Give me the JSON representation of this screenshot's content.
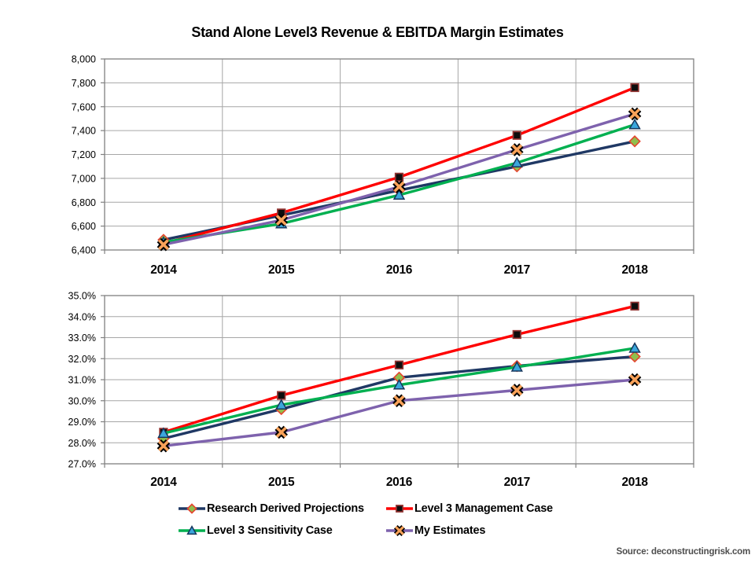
{
  "title": "Stand Alone Level3 Revenue & EBITDA Margin Estimates",
  "source_note": "Source: deconstructingrisk.com",
  "colors": {
    "research_line": "#1F3864",
    "management_line": "#FE0000",
    "sensitivity_line": "#00B050",
    "my_estimates_line": "#7E62AD",
    "gridline": "#A6A6A6",
    "plot_border": "#808080"
  },
  "chart_data": [
    {
      "type": "line",
      "name": "revenue-estimates",
      "categories": [
        "2014",
        "2015",
        "2016",
        "2017",
        "2018"
      ],
      "xlabel": "",
      "ylabel": "",
      "ylim": [
        6400,
        8000
      ],
      "grid": true,
      "ytick_values": [
        8000,
        7800,
        7600,
        7400,
        7200,
        7000,
        6800,
        6600,
        6400
      ],
      "ytick_labels": [
        "8,000",
        "7,800",
        "7,600",
        "7,400",
        "7,200",
        "7,000",
        "6,800",
        "6,600",
        "6,400"
      ],
      "series": [
        {
          "name": "Research Derived Projections",
          "color": "#1F3864",
          "marker": "diamond",
          "marker_fill": "#8FBF4D",
          "marker_stroke": "#E6432E",
          "values": [
            6485,
            6690,
            6900,
            7100,
            7310
          ]
        },
        {
          "name": "Level 3 Management Case",
          "color": "#FE0000",
          "marker": "square",
          "marker_fill": "#0D0D0D",
          "marker_stroke": "#943634",
          "values": [
            6455,
            6710,
            7010,
            7360,
            7760
          ]
        },
        {
          "name": "Level 3 Sensitivity Case",
          "color": "#00B050",
          "marker": "triangle",
          "marker_fill": "#3BA6DC",
          "marker_stroke": "#16365C",
          "values": [
            6465,
            6620,
            6860,
            7130,
            7450
          ]
        },
        {
          "name": "My Estimates",
          "color": "#7E62AD",
          "marker": "x",
          "marker_fill": "#F9A259",
          "marker_stroke": "#000000",
          "values": [
            6445,
            6650,
            6930,
            7240,
            7540
          ]
        }
      ]
    },
    {
      "type": "line",
      "name": "ebitda-margin-estimates",
      "categories": [
        "2014",
        "2015",
        "2016",
        "2017",
        "2018"
      ],
      "xlabel": "",
      "ylabel": "",
      "ylim": [
        27.0,
        35.0
      ],
      "grid": true,
      "ytick_values": [
        35.0,
        34.0,
        33.0,
        32.0,
        31.0,
        30.0,
        29.0,
        28.0,
        27.0
      ],
      "ytick_labels": [
        "35.0%",
        "34.0%",
        "33.0%",
        "32.0%",
        "31.0%",
        "30.0%",
        "29.0%",
        "28.0%",
        "27.0%"
      ],
      "series": [
        {
          "name": "Research Derived Projections",
          "color": "#1F3864",
          "marker": "diamond",
          "marker_fill": "#8FBF4D",
          "marker_stroke": "#E6432E",
          "values": [
            28.2,
            29.6,
            31.1,
            31.65,
            32.1
          ]
        },
        {
          "name": "Level 3 Management Case",
          "color": "#FE0000",
          "marker": "square",
          "marker_fill": "#0D0D0D",
          "marker_stroke": "#943634",
          "values": [
            28.5,
            30.25,
            31.7,
            33.15,
            34.5
          ]
        },
        {
          "name": "Level 3 Sensitivity Case",
          "color": "#00B050",
          "marker": "triangle",
          "marker_fill": "#3BA6DC",
          "marker_stroke": "#16365C",
          "values": [
            28.45,
            29.8,
            30.75,
            31.6,
            32.5
          ]
        },
        {
          "name": "My Estimates",
          "color": "#7E62AD",
          "marker": "x",
          "marker_fill": "#F9A259",
          "marker_stroke": "#000000",
          "values": [
            27.85,
            28.5,
            30.0,
            30.5,
            31.0
          ]
        }
      ]
    }
  ]
}
